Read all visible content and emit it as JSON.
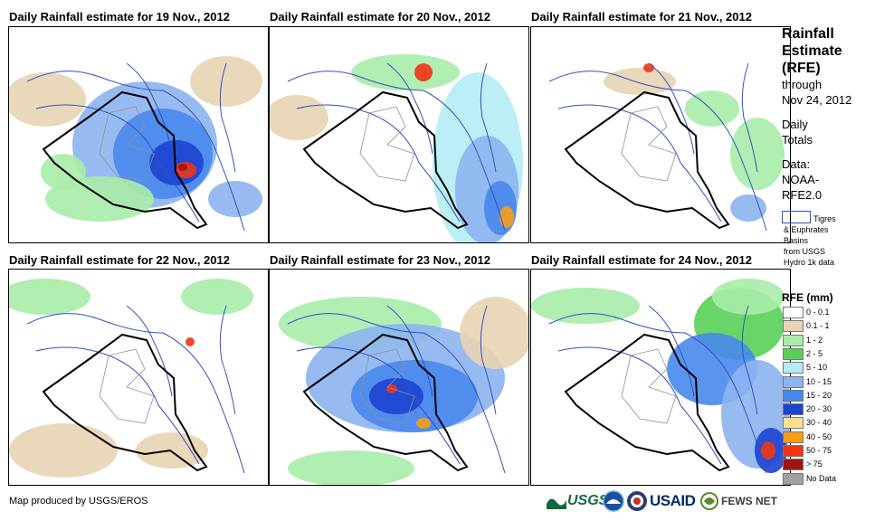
{
  "panels": [
    {
      "title": "Daily Rainfall estimate for 19 Nov., 2012"
    },
    {
      "title": "Daily Rainfall estimate for 20 Nov., 2012"
    },
    {
      "title": "Daily Rainfall estimate for 21 Nov., 2012"
    },
    {
      "title": "Daily Rainfall estimate for 22 Nov., 2012"
    },
    {
      "title": "Daily Rainfall estimate for 23 Nov., 2012"
    },
    {
      "title": "Daily Rainfall estimate for 24 Nov., 2012"
    }
  ],
  "sidebar": {
    "title_line1": "Rainfall",
    "title_line2": "Estimate",
    "title_line3": "(RFE)",
    "through": "through",
    "date": "Nov 24, 2012",
    "daily": "Daily",
    "totals": "Totals",
    "data_label": "Data:",
    "data_source1": "NOAA-",
    "data_source2": "RFE2.0",
    "basin_line1": "Tigres",
    "basin_line2": "& Euphrates",
    "basin_line3": "Basins",
    "basin_line4": "from USGS",
    "basin_line5": "Hydro 1k data"
  },
  "legend": {
    "title": "RFE (mm)",
    "items": [
      {
        "label": "0 - 0.1",
        "color": "#ffffff"
      },
      {
        "label": "0.1 - 1",
        "color": "#e8d4b4"
      },
      {
        "label": "1 - 2",
        "color": "#a8eca8"
      },
      {
        "label": "2 - 5",
        "color": "#58d058"
      },
      {
        "label": "5 - 10",
        "color": "#b4ecf4"
      },
      {
        "label": "10 - 15",
        "color": "#8cb4f0"
      },
      {
        "label": "15 - 20",
        "color": "#4888ec"
      },
      {
        "label": "20 - 30",
        "color": "#1c44d0"
      },
      {
        "label": "30 - 40",
        "color": "#fce08c"
      },
      {
        "label": "40 - 50",
        "color": "#f89c18"
      },
      {
        "label": "50 - 75",
        "color": "#f03414"
      },
      {
        "label": "> 75",
        "color": "#a01414"
      },
      {
        "label": "No Data",
        "color": "#a0a0a0"
      }
    ]
  },
  "footer": {
    "credit": "Map produced by USGS/EROS"
  },
  "logos": {
    "usgs": "USGS",
    "usaid": "USAID",
    "fews": "FEWS NET"
  }
}
